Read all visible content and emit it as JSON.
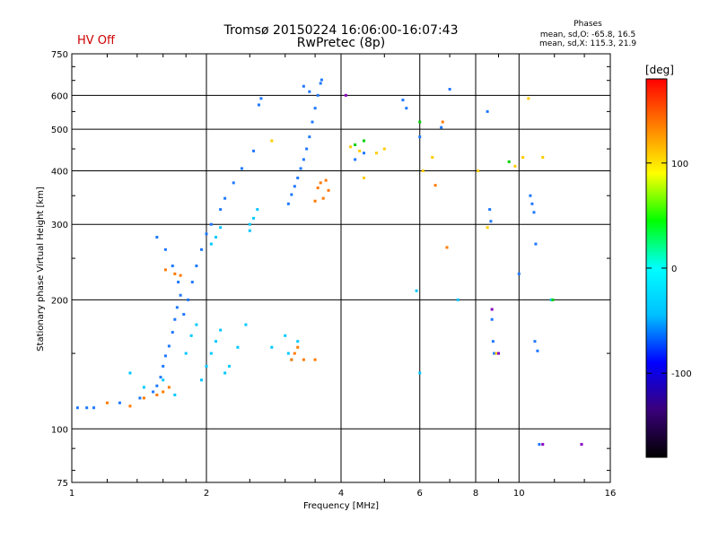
{
  "header": {
    "title_line1": "Tromsø 20150224 16:06:00-16:07:43",
    "title_line2": "RwPretec (8p)",
    "hv_status": "HV Off",
    "phases_title": "Phases",
    "phases_o": "mean, sd,O: -65.8, 16.5",
    "phases_x": "mean, sd,X: 115.3, 21.9"
  },
  "colorbar": {
    "label": "[deg]",
    "ticks": [
      "100",
      "0",
      "-100"
    ],
    "tick_values": [
      100,
      0,
      -100
    ],
    "range": [
      -180,
      180
    ],
    "colors": [
      "#000000",
      "#3a007a",
      "#0000ff",
      "#00bfff",
      "#00ffff",
      "#00ff00",
      "#ffff00",
      "#ff8000",
      "#ff0000"
    ]
  },
  "chart_data": {
    "type": "scatter",
    "xlabel": "Frequency [MHz]",
    "ylabel": "Stationary phase Virtual Height [km]",
    "xscale": "log",
    "yscale": "log",
    "xlim": [
      1,
      16
    ],
    "ylim": [
      75,
      750
    ],
    "xticks": [
      1,
      2,
      4,
      6,
      8,
      10,
      16
    ],
    "yticks": [
      75,
      100,
      200,
      300,
      400,
      500,
      600,
      750
    ],
    "grid": true,
    "legend": "colorbar-right",
    "series": [
      {
        "color": "#1e78ff",
        "points": [
          [
            1.03,
            112
          ],
          [
            1.08,
            112
          ],
          [
            1.12,
            112
          ],
          [
            1.28,
            115
          ],
          [
            1.42,
            118
          ],
          [
            1.52,
            122
          ],
          [
            1.55,
            126
          ],
          [
            1.58,
            132
          ],
          [
            1.6,
            140
          ],
          [
            1.62,
            148
          ],
          [
            1.65,
            156
          ],
          [
            1.68,
            168
          ],
          [
            1.7,
            180
          ],
          [
            1.72,
            192
          ],
          [
            1.75,
            205
          ],
          [
            1.73,
            220
          ],
          [
            1.68,
            240
          ],
          [
            1.62,
            262
          ],
          [
            1.55,
            280
          ],
          [
            1.78,
            185
          ],
          [
            1.82,
            200
          ],
          [
            1.86,
            220
          ],
          [
            1.9,
            240
          ],
          [
            1.95,
            262
          ],
          [
            2.0,
            285
          ],
          [
            2.05,
            300
          ],
          [
            2.15,
            325
          ],
          [
            2.2,
            345
          ],
          [
            2.3,
            375
          ],
          [
            2.4,
            405
          ],
          [
            2.55,
            445
          ],
          [
            2.62,
            570
          ],
          [
            2.65,
            590
          ],
          [
            3.05,
            335
          ],
          [
            3.1,
            352
          ],
          [
            3.15,
            368
          ],
          [
            3.2,
            385
          ],
          [
            3.25,
            405
          ],
          [
            3.3,
            425
          ],
          [
            3.35,
            450
          ],
          [
            3.4,
            480
          ],
          [
            3.45,
            520
          ],
          [
            3.5,
            560
          ],
          [
            3.55,
            600
          ],
          [
            3.6,
            640
          ],
          [
            3.62,
            652
          ],
          [
            3.3,
            630
          ],
          [
            3.4,
            612
          ],
          [
            4.3,
            425
          ],
          [
            4.5,
            440
          ],
          [
            5.5,
            585
          ],
          [
            5.6,
            560
          ],
          [
            6.0,
            480
          ],
          [
            6.7,
            505
          ],
          [
            7.0,
            620
          ],
          [
            8.5,
            550
          ],
          [
            8.6,
            325
          ],
          [
            8.65,
            305
          ],
          [
            8.7,
            180
          ],
          [
            8.75,
            160
          ],
          [
            8.8,
            150
          ],
          [
            10.0,
            230
          ],
          [
            10.6,
            350
          ],
          [
            10.7,
            335
          ],
          [
            10.8,
            320
          ],
          [
            10.9,
            270
          ],
          [
            10.85,
            160
          ],
          [
            11.0,
            152
          ],
          [
            11.1,
            92
          ]
        ]
      },
      {
        "color": "#00c8ff",
        "points": [
          [
            1.35,
            135
          ],
          [
            1.45,
            125
          ],
          [
            1.6,
            130
          ],
          [
            1.7,
            120
          ],
          [
            1.8,
            150
          ],
          [
            1.85,
            165
          ],
          [
            1.9,
            175
          ],
          [
            1.95,
            130
          ],
          [
            2.0,
            140
          ],
          [
            2.05,
            150
          ],
          [
            2.1,
            160
          ],
          [
            2.15,
            170
          ],
          [
            2.2,
            135
          ],
          [
            2.25,
            140
          ],
          [
            2.35,
            155
          ],
          [
            2.45,
            175
          ],
          [
            2.5,
            300
          ],
          [
            2.55,
            310
          ],
          [
            2.6,
            325
          ],
          [
            2.5,
            290
          ],
          [
            2.05,
            270
          ],
          [
            2.1,
            280
          ],
          [
            2.15,
            295
          ],
          [
            3.0,
            165
          ],
          [
            3.05,
            150
          ],
          [
            3.1,
            145
          ],
          [
            3.2,
            160
          ],
          [
            2.8,
            155
          ],
          [
            5.9,
            210
          ],
          [
            6.0,
            135
          ],
          [
            7.3,
            200
          ],
          [
            11.8,
            200
          ]
        ]
      },
      {
        "color": "#ff7a00",
        "points": [
          [
            1.2,
            115
          ],
          [
            1.35,
            113
          ],
          [
            1.45,
            118
          ],
          [
            1.55,
            120
          ],
          [
            1.6,
            122
          ],
          [
            1.65,
            125
          ],
          [
            1.7,
            230
          ],
          [
            1.75,
            228
          ],
          [
            1.62,
            235
          ],
          [
            3.1,
            145
          ],
          [
            3.15,
            150
          ],
          [
            3.2,
            155
          ],
          [
            3.3,
            145
          ],
          [
            3.5,
            145
          ],
          [
            3.55,
            365
          ],
          [
            3.6,
            375
          ],
          [
            3.7,
            380
          ],
          [
            3.75,
            360
          ],
          [
            3.65,
            345
          ],
          [
            3.5,
            340
          ],
          [
            6.5,
            370
          ],
          [
            6.75,
            520
          ],
          [
            6.9,
            265
          ]
        ]
      },
      {
        "color": "#ffcc00",
        "points": [
          [
            2.8,
            470
          ],
          [
            4.2,
            455
          ],
          [
            4.4,
            445
          ],
          [
            4.5,
            385
          ],
          [
            4.8,
            440
          ],
          [
            5.0,
            450
          ],
          [
            6.1,
            400
          ],
          [
            6.4,
            430
          ],
          [
            8.1,
            400
          ],
          [
            8.5,
            295
          ],
          [
            8.9,
            150
          ],
          [
            9.8,
            410
          ],
          [
            10.2,
            430
          ],
          [
            10.5,
            590
          ],
          [
            11.3,
            430
          ]
        ]
      },
      {
        "color": "#00d000",
        "points": [
          [
            4.3,
            460
          ],
          [
            4.5,
            470
          ],
          [
            6.0,
            520
          ],
          [
            9.5,
            420
          ],
          [
            11.9,
            200
          ]
        ]
      },
      {
        "color": "#8a00c0",
        "points": [
          [
            4.1,
            600
          ],
          [
            8.7,
            190
          ],
          [
            9.0,
            150
          ],
          [
            11.3,
            92
          ],
          [
            13.8,
            92
          ]
        ]
      }
    ]
  }
}
